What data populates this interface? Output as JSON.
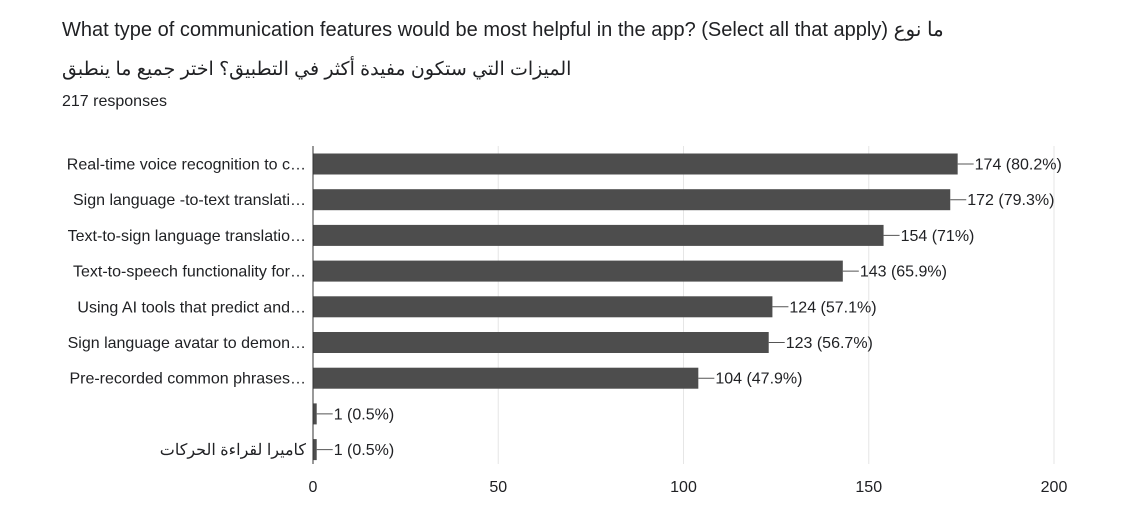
{
  "question": {
    "title": "What type of communication features would be most helpful in the app? (Select all that apply)  ما نوع",
    "title_ar": "الميزات التي ستكون مفيدة أكثر في التطبيق؟ اختر جميع ما ينطبق",
    "responses": "217 responses"
  },
  "chart_data": {
    "type": "bar",
    "orientation": "horizontal",
    "categories": [
      "Real-time voice recognition to c…",
      "Sign language -to-text translati…",
      "Text-to-sign language translatio…",
      "Text-to-speech functionality for…",
      "Using AI tools that predict and…",
      "Sign language avatar to demon…",
      "Pre-recorded common phrases…",
      "",
      "كاميرا لقراءة الحركات"
    ],
    "values": [
      174,
      172,
      154,
      143,
      124,
      123,
      104,
      1,
      1
    ],
    "value_labels": [
      "174 (80.2%)",
      "172 (79.3%)",
      "154 (71%)",
      "143 (65.9%)",
      "124 (57.1%)",
      "123 (56.7%)",
      "104 (47.9%)",
      "1 (0.5%)",
      "1 (0.5%)"
    ],
    "xlim": [
      0,
      200
    ],
    "xticks": [
      "0",
      "50",
      "100",
      "150",
      "200"
    ],
    "grid": true,
    "colors": {
      "bar": "#4d4d4d",
      "grid": "#e6e6e6",
      "axis": "#333333"
    }
  }
}
